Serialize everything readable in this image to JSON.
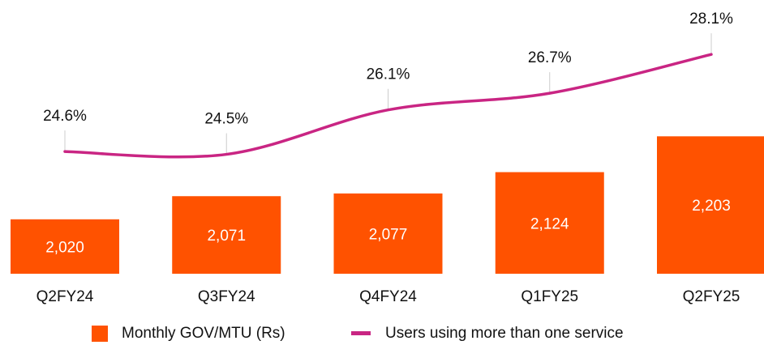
{
  "chart_data": {
    "type": "bar",
    "categories": [
      "Q2FY24",
      "Q3FY24",
      "Q4FY24",
      "Q1FY25",
      "Q2FY25"
    ],
    "ylim": [
      1900,
      2500
    ],
    "y2lim": [
      20.2,
      30.0
    ],
    "legend": "bottom",
    "series": [
      {
        "name": "Monthly GOV/MTU (Rs)",
        "type": "bar",
        "color": "#ff5200",
        "values": [
          2020,
          2071,
          2077,
          2124,
          2203
        ],
        "value_labels": [
          "2,020",
          "2,071",
          "2,077",
          "2,124",
          "2,203"
        ]
      },
      {
        "name": "Users using more than one service",
        "type": "line",
        "color": "#c92583",
        "axis": "y2",
        "values": [
          24.6,
          24.5,
          26.1,
          26.7,
          28.1
        ],
        "value_labels": [
          "24.6%",
          "24.5%",
          "26.1%",
          "26.7%",
          "28.1%"
        ]
      }
    ]
  }
}
